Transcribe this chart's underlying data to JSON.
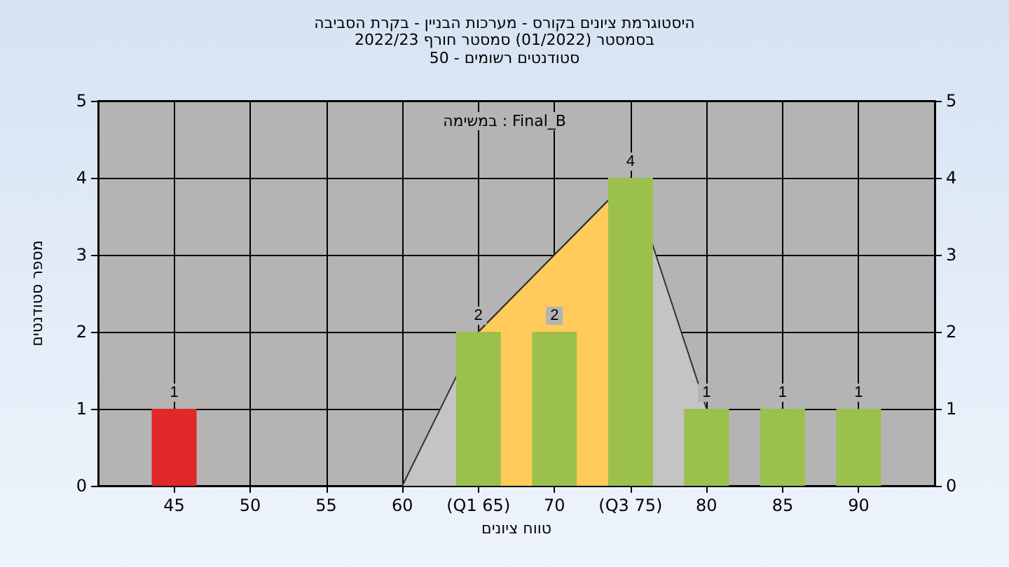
{
  "chart_data": {
    "type": "bar",
    "title": "היסטוגרמת ציונים בקורס - מערכות הבניין - בקרת הסביבה",
    "subtitle": "בסמסטר (01/2022) סמסטר חורף 2022/23\nסטודנטים רשומים - 50",
    "xlabel": "טווח ציונים",
    "ylabel": "מספר סטודנטים",
    "annotations": [
      "במשימה : Final_B"
    ],
    "x": [
      45,
      50,
      55,
      60,
      65,
      70,
      75,
      80,
      85,
      90
    ],
    "series": [
      {
        "type": "area",
        "color": "#c4c4c4",
        "x": [
          60,
          65,
          75,
          80
        ],
        "values": [
          0,
          2,
          4,
          1
        ]
      },
      {
        "type": "area",
        "color": "#ffcc5c",
        "x": [
          65,
          75
        ],
        "values": [
          2,
          4
        ]
      },
      {
        "colors": [
          "#e02828",
          "#9cc04c",
          "#9cc04c",
          "#9cc04c",
          "#9cc04c",
          "#9cc04c",
          "#9cc04c",
          "#9cc04c",
          "#9cc04c",
          "#9cc04c"
        ],
        "values": [
          1,
          0,
          0,
          0,
          2,
          2,
          4,
          1,
          1,
          1
        ],
        "value_labels": [
          "1",
          null,
          null,
          null,
          "2",
          "2",
          "4",
          "1",
          "1",
          "1"
        ]
      }
    ],
    "xlim": [
      40,
      95
    ],
    "xticks": [
      45,
      50,
      55,
      60,
      {
        "value": 65,
        "label": "(Q1 65)"
      },
      70,
      {
        "value": 75,
        "label": "(Q3 75)"
      },
      80,
      85,
      90
    ],
    "ylim": [
      0,
      5
    ],
    "yticks": [
      0,
      1,
      2,
      3,
      4,
      5
    ],
    "y2lim": [
      0,
      5
    ],
    "y2ticks": [
      0,
      1,
      2,
      3,
      4,
      5
    ],
    "grid": true
  }
}
